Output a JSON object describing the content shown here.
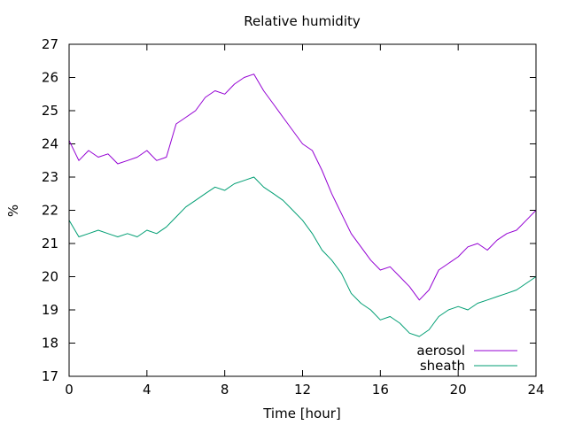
{
  "chart_data": {
    "type": "line",
    "title": "Relative humidity",
    "xlabel": "Time [hour]",
    "ylabel": "%",
    "xlim": [
      0,
      24
    ],
    "ylim": [
      17,
      27
    ],
    "xticks": [
      0,
      4,
      8,
      12,
      16,
      20,
      24
    ],
    "yticks": [
      17,
      18,
      19,
      20,
      21,
      22,
      23,
      24,
      25,
      26,
      27
    ],
    "grid": false,
    "legend_position": "bottom-right",
    "series": [
      {
        "name": "aerosol",
        "color": "#9400d3",
        "x": [
          0,
          0.5,
          1,
          1.5,
          2,
          2.5,
          3,
          3.5,
          4,
          4.5,
          5,
          5.5,
          6,
          6.5,
          7,
          7.5,
          8,
          8.5,
          9,
          9.5,
          10,
          10.5,
          11,
          11.5,
          12,
          12.5,
          13,
          13.5,
          14,
          14.5,
          15,
          15.5,
          16,
          16.5,
          17,
          17.5,
          18,
          18.5,
          19,
          19.5,
          20,
          20.5,
          21,
          21.5,
          22,
          22.5,
          23,
          23.5,
          24
        ],
        "y": [
          24.1,
          23.5,
          23.8,
          23.6,
          23.7,
          23.4,
          23.5,
          23.6,
          23.8,
          23.5,
          23.6,
          24.6,
          24.8,
          25.0,
          25.4,
          25.6,
          25.5,
          25.8,
          26.0,
          26.1,
          25.6,
          25.2,
          24.8,
          24.4,
          24.0,
          23.8,
          23.2,
          22.5,
          21.9,
          21.3,
          20.9,
          20.5,
          20.2,
          20.3,
          20.0,
          19.7,
          19.3,
          19.6,
          20.2,
          20.4,
          20.6,
          20.9,
          21.0,
          20.8,
          21.1,
          21.3,
          21.4,
          21.7,
          22.0
        ]
      },
      {
        "name": "sheath",
        "color": "#009e73",
        "x": [
          0,
          0.5,
          1,
          1.5,
          2,
          2.5,
          3,
          3.5,
          4,
          4.5,
          5,
          5.5,
          6,
          6.5,
          7,
          7.5,
          8,
          8.5,
          9,
          9.5,
          10,
          10.5,
          11,
          11.5,
          12,
          12.5,
          13,
          13.5,
          14,
          14.5,
          15,
          15.5,
          16,
          16.5,
          17,
          17.5,
          18,
          18.5,
          19,
          19.5,
          20,
          20.5,
          21,
          21.5,
          22,
          22.5,
          23,
          23.5,
          24
        ],
        "y": [
          21.7,
          21.2,
          21.3,
          21.4,
          21.3,
          21.2,
          21.3,
          21.2,
          21.4,
          21.3,
          21.5,
          21.8,
          22.1,
          22.3,
          22.5,
          22.7,
          22.6,
          22.8,
          22.9,
          23.0,
          22.7,
          22.5,
          22.3,
          22.0,
          21.7,
          21.3,
          20.8,
          20.5,
          20.1,
          19.5,
          19.2,
          19.0,
          18.7,
          18.8,
          18.6,
          18.3,
          18.2,
          18.4,
          18.8,
          19.0,
          19.1,
          19.0,
          19.2,
          19.3,
          19.4,
          19.5,
          19.6,
          19.8,
          20.0
        ]
      }
    ]
  }
}
